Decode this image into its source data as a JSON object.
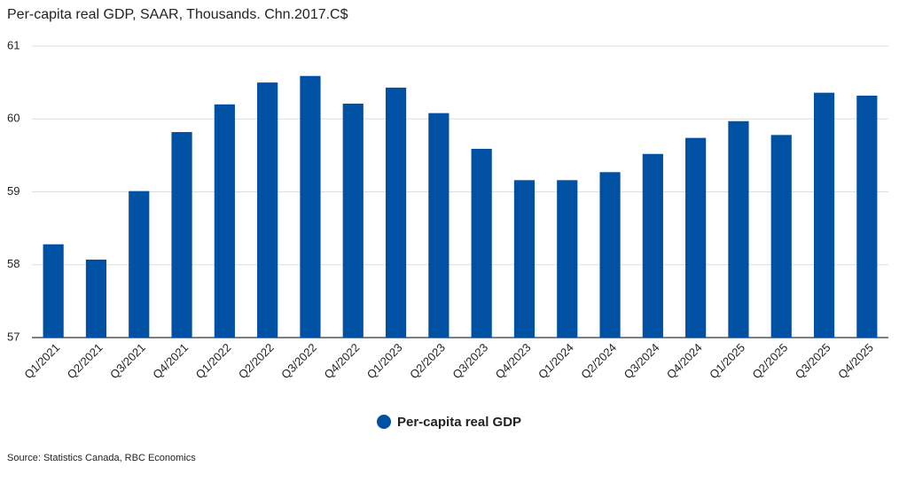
{
  "chart_data": {
    "type": "bar",
    "subtitle": "Per-capita real GDP,  SAAR, Thousands. Chn.2017.C$",
    "categories": [
      "Q1/2021",
      "Q2/2021",
      "Q3/2021",
      "Q4/2021",
      "Q1/2022",
      "Q2/2022",
      "Q3/2022",
      "Q4/2022",
      "Q1/2023",
      "Q2/2023",
      "Q3/2023",
      "Q4/2023",
      "Q1/2024",
      "Q2/2024",
      "Q3/2024",
      "Q4/2024",
      "Q1/2025",
      "Q2/2025",
      "Q3/2025",
      "Q4/2025"
    ],
    "series": [
      {
        "name": "Per-capita real GDP",
        "color": "#0050a3",
        "values": [
          58.28,
          58.07,
          59.01,
          59.82,
          60.2,
          60.5,
          60.59,
          60.21,
          60.43,
          60.08,
          59.59,
          59.16,
          59.16,
          59.27,
          59.52,
          59.74,
          59.97,
          59.78,
          60.36,
          60.32
        ]
      }
    ],
    "ylim": [
      57,
      61
    ],
    "yticks": [
      57,
      58,
      59,
      60,
      61
    ],
    "grid": true,
    "legend": "bottom",
    "source": "Source: Statistics Canada, RBC Economics"
  }
}
